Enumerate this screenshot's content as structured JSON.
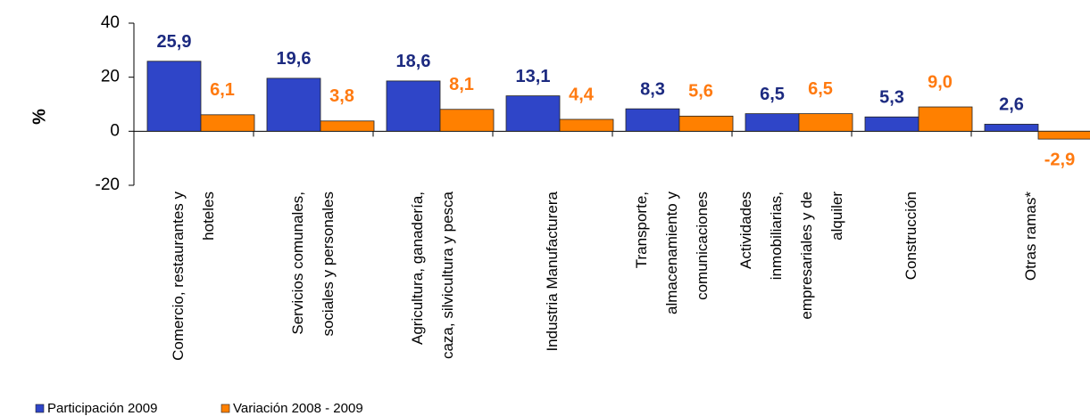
{
  "chart_data": {
    "type": "bar",
    "ylabel": "%",
    "categories": [
      "Comercio, restaurantes y hoteles",
      "Servicios comunales, sociales y personales",
      "Agricultura, ganadería, caza, silvicultura y pesca",
      "Industria Manufacturera",
      "Transporte, almacenamiento y comunicaciones",
      "Actividades inmobiliarias, empresariales y de alquiler",
      "Construcción",
      "Otras ramas*"
    ],
    "series": [
      {
        "name": "Participación 2009",
        "color": "#2f45c8",
        "label_color": "#1c2a80",
        "values": [
          25.9,
          19.6,
          18.6,
          13.1,
          8.3,
          6.5,
          5.3,
          2.6
        ],
        "value_labels": [
          "25,9",
          "19,6",
          "18,6",
          "13,1",
          "8,3",
          "6,5",
          "5,3",
          "2,6"
        ]
      },
      {
        "name": "Variación 2008 - 2009",
        "color": "#ff8000",
        "label_color": "#ff7a10",
        "values": [
          6.1,
          3.8,
          8.1,
          4.4,
          5.6,
          6.5,
          9.0,
          -2.9
        ],
        "value_labels": [
          "6,1",
          "3,8",
          "8,1",
          "4,4",
          "5,6",
          "6,5",
          "9,0",
          "-2,9"
        ]
      }
    ],
    "ylim": [
      -20,
      40
    ],
    "yticks": [
      -20,
      0,
      20,
      40
    ],
    "grid": false,
    "legend": "bottom-left"
  }
}
